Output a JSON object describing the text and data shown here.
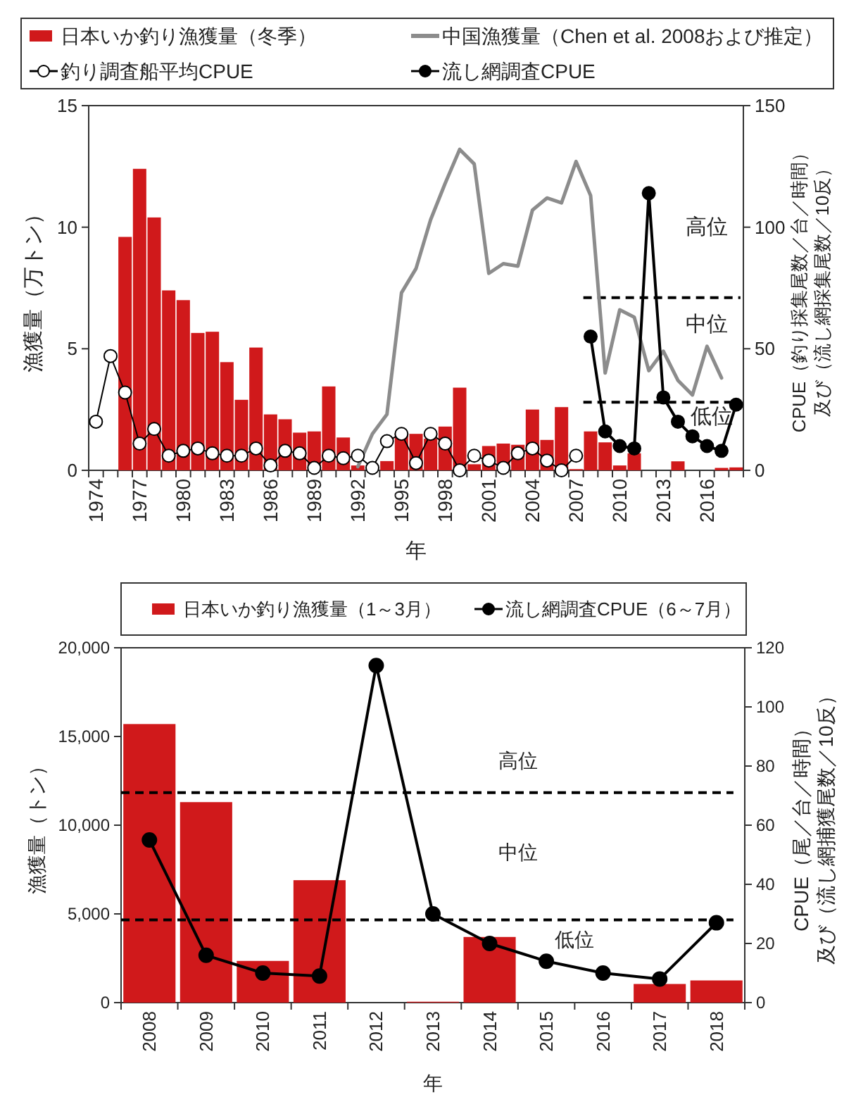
{
  "chart_data": [
    {
      "type": "bar",
      "xlabel": "年",
      "ylabel": "漁獲量（万トン）",
      "y2label": "CPUE（釣り採集尾数／台／時間）及び（流し網採集尾数／10反）",
      "categories": [
        "1974",
        null,
        null,
        "1977",
        null,
        null,
        "1980",
        null,
        null,
        "1983",
        null,
        null,
        "1986",
        null,
        null,
        "1989",
        null,
        null,
        "1992",
        null,
        null,
        "1995",
        null,
        null,
        "1998",
        null,
        null,
        "2001",
        null,
        null,
        "2004",
        null,
        null,
        "2007",
        null,
        null,
        "2010",
        null,
        null,
        "2013",
        null,
        null,
        "2016",
        null,
        null
      ],
      "series": [
        {
          "name": "日本いか釣り漁獲量（冬季）",
          "color": "#d0191b",
          "values": [
            null,
            null,
            9.6,
            12.4,
            10.4,
            7.4,
            7.0,
            5.65,
            5.7,
            4.45,
            2.9,
            5.05,
            2.3,
            2.1,
            1.55,
            1.6,
            3.45,
            1.35,
            0.2,
            null,
            0.38,
            1.5,
            1.5,
            1.3,
            1.8,
            3.4,
            0.25,
            1.0,
            1.1,
            1.05,
            2.5,
            1.25,
            2.6,
            0.05,
            1.6,
            1.15,
            0.2,
            0.7,
            null,
            null,
            0.37,
            null,
            null,
            0.1,
            0.12
          ]
        },
        {
          "name": "中国漁獲量（Chen et al. 2008および推定）",
          "type": "line",
          "color": "#8c8c8c",
          "marker": "none",
          "values": [
            null,
            null,
            null,
            null,
            null,
            null,
            null,
            null,
            null,
            null,
            null,
            null,
            null,
            null,
            null,
            null,
            null,
            null,
            0.15,
            1.5,
            2.3,
            7.3,
            8.3,
            10.3,
            11.8,
            13.2,
            12.6,
            8.1,
            8.5,
            8.4,
            10.7,
            11.2,
            11.0,
            12.7,
            11.3,
            4.0,
            6.6,
            6.3,
            4.1,
            4.9,
            3.7,
            3.1,
            5.1,
            3.8,
            null
          ]
        },
        {
          "name": "釣り調査船平均CPUE",
          "type": "line",
          "axis": "y2",
          "color": "#ffffff",
          "marker": "circle",
          "values": [
            20,
            47,
            32,
            11,
            17,
            6,
            8,
            9,
            7,
            6,
            6,
            9,
            2,
            8,
            7,
            1,
            6,
            5,
            6,
            1,
            12,
            15,
            3,
            15,
            11,
            0,
            6,
            4,
            1,
            7,
            9,
            4,
            0,
            6,
            null,
            null,
            null,
            null,
            null,
            null,
            null,
            null,
            null,
            null,
            null
          ]
        },
        {
          "name": "流し網調査CPUE",
          "type": "line",
          "axis": "y2",
          "color": "#000000",
          "marker": "circle",
          "values": [
            null,
            null,
            null,
            null,
            null,
            null,
            null,
            null,
            null,
            null,
            null,
            null,
            null,
            null,
            null,
            null,
            null,
            null,
            null,
            null,
            null,
            null,
            null,
            null,
            null,
            null,
            null,
            null,
            null,
            null,
            null,
            null,
            null,
            null,
            55,
            16,
            10,
            9,
            114,
            30,
            20,
            14,
            10,
            8,
            27
          ]
        }
      ],
      "ylim": [
        0,
        15
      ],
      "yticks": [
        0,
        5,
        10,
        15
      ],
      "y2lim": [
        0,
        150
      ],
      "y2ticks": [
        0,
        50,
        100,
        150
      ],
      "legend": "top",
      "ref_lines": [
        {
          "axis": "y2",
          "value": 71,
          "line_style": "dashed"
        },
        {
          "axis": "y2",
          "value": 28,
          "line_style": "dashed"
        }
      ],
      "annotations": [
        "高位",
        "中位",
        "低位"
      ]
    },
    {
      "type": "bar",
      "xlabel": "年",
      "ylabel": "漁獲量（トン）",
      "y2label": "CPUE（尾／台／時間）及び（流し網捕獲尾数／10反）",
      "categories": [
        "2008",
        "2009",
        "2010",
        "2011",
        "2012",
        "2013",
        "2014",
        "2015",
        "2016",
        "2017",
        "2018"
      ],
      "series": [
        {
          "name": "日本いか釣り漁獲量（1～3月）",
          "color": "#d0191b",
          "values": [
            15700,
            11300,
            2350,
            6900,
            null,
            50,
            3700,
            null,
            null,
            1050,
            1250
          ]
        },
        {
          "name": "流し網調査CPUE（6～7月）",
          "type": "line",
          "axis": "y2",
          "color": "#000000",
          "marker": "circle",
          "values": [
            55,
            16,
            10,
            9,
            114,
            30,
            20,
            14,
            10,
            8,
            27
          ]
        }
      ],
      "ylim": [
        0,
        20000
      ],
      "yticks": [
        0,
        {
          "value": 5000,
          "label": "5,000"
        },
        {
          "value": 10000,
          "label": "10,000"
        },
        {
          "value": 15000,
          "label": "15,000"
        },
        {
          "value": 20000,
          "label": "20,000"
        }
      ],
      "y2lim": [
        0,
        120
      ],
      "y2ticks": [
        0,
        20,
        40,
        60,
        80,
        100,
        120
      ],
      "legend": "top",
      "ref_lines": [
        {
          "axis": "y2",
          "value": 71,
          "line_style": "dashed"
        },
        {
          "axis": "y2",
          "value": 28,
          "line_style": "dashed"
        }
      ],
      "annotations": [
        "高位",
        "中位",
        "低位"
      ]
    }
  ]
}
